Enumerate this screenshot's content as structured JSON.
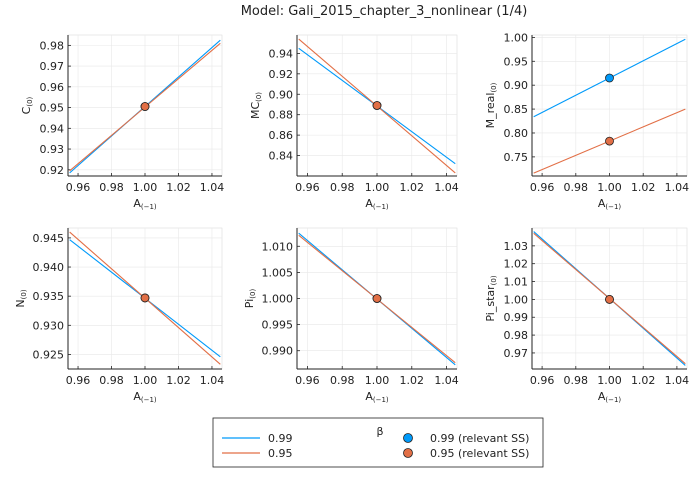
{
  "title": "Model: Gali_2015_chapter_3_nonlinear  (1/4)",
  "colors": {
    "beta_0_99": "#009AFA",
    "beta_0_95": "#E26F46",
    "grid": "#E8E8E8",
    "axis": "#222222"
  },
  "legend": {
    "title": "β",
    "entries": [
      {
        "label": "0.99",
        "kind": "line",
        "color": "#009AFA"
      },
      {
        "label": "0.95",
        "kind": "line",
        "color": "#E26F46"
      },
      {
        "label": "0.99 (relevant SS)",
        "kind": "marker",
        "color": "#009AFA"
      },
      {
        "label": "0.95 (relevant SS)",
        "kind": "marker",
        "color": "#E26F46"
      }
    ]
  },
  "chart_data": [
    {
      "type": "line",
      "ylabel": "C",
      "ylabel_sub": "(0)",
      "xlabel": "A",
      "xlabel_sub": "(−1)",
      "grid": true,
      "xlim": [
        0.954,
        1.046
      ],
      "ylim": [
        0.917,
        0.985
      ],
      "xticks": [
        "0.96",
        "0.98",
        "1.00",
        "1.02",
        "1.04"
      ],
      "yticks": [
        "0.92",
        "0.93",
        "0.94",
        "0.95",
        "0.96",
        "0.97",
        "0.98"
      ],
      "series": [
        {
          "name": "0.99",
          "x": [
            0.955,
            1.045
          ],
          "y": [
            0.9185,
            0.9825
          ]
        },
        {
          "name": "0.95",
          "x": [
            0.955,
            1.045
          ],
          "y": [
            0.9195,
            0.981
          ]
        }
      ],
      "points": [
        {
          "name": "0.99 (relevant SS)",
          "x": 1.0,
          "y": 0.9505
        },
        {
          "name": "0.95 (relevant SS)",
          "x": 1.0,
          "y": 0.9505
        }
      ]
    },
    {
      "type": "line",
      "ylabel": "MC",
      "ylabel_sub": "(0)",
      "xlabel": "A",
      "xlabel_sub": "(−1)",
      "grid": true,
      "xlim": [
        0.954,
        1.046
      ],
      "ylim": [
        0.82,
        0.958
      ],
      "xticks": [
        "0.96",
        "0.98",
        "1.00",
        "1.02",
        "1.04"
      ],
      "yticks": [
        "0.84",
        "0.86",
        "0.88",
        "0.90",
        "0.92",
        "0.94"
      ],
      "series": [
        {
          "name": "0.99",
          "x": [
            0.955,
            1.045
          ],
          "y": [
            0.945,
            0.832
          ]
        },
        {
          "name": "0.95",
          "x": [
            0.955,
            1.045
          ],
          "y": [
            0.954,
            0.823
          ]
        }
      ],
      "points": [
        {
          "name": "0.99 (relevant SS)",
          "x": 1.0,
          "y": 0.889
        },
        {
          "name": "0.95 (relevant SS)",
          "x": 1.0,
          "y": 0.889
        }
      ]
    },
    {
      "type": "line",
      "ylabel": "M_real",
      "ylabel_sub": "(0)",
      "xlabel": "A",
      "xlabel_sub": "(−1)",
      "grid": true,
      "xlim": [
        0.954,
        1.046
      ],
      "ylim": [
        0.71,
        1.005
      ],
      "xticks": [
        "0.96",
        "0.98",
        "1.00",
        "1.02",
        "1.04"
      ],
      "yticks": [
        "0.75",
        "0.80",
        "0.85",
        "0.90",
        "0.95",
        "1.00"
      ],
      "series": [
        {
          "name": "0.99",
          "x": [
            0.955,
            1.045
          ],
          "y": [
            0.834,
            0.996
          ]
        },
        {
          "name": "0.95",
          "x": [
            0.955,
            1.045
          ],
          "y": [
            0.716,
            0.85
          ]
        }
      ],
      "points": [
        {
          "name": "0.99 (relevant SS)",
          "x": 1.0,
          "y": 0.915
        },
        {
          "name": "0.95 (relevant SS)",
          "x": 1.0,
          "y": 0.783
        }
      ]
    },
    {
      "type": "line",
      "ylabel": "N",
      "ylabel_sub": "(0)",
      "xlabel": "A",
      "xlabel_sub": "(−1)",
      "grid": true,
      "xlim": [
        0.954,
        1.046
      ],
      "ylim": [
        0.9225,
        0.9467
      ],
      "xticks": [
        "0.96",
        "0.98",
        "1.00",
        "1.02",
        "1.04"
      ],
      "yticks": [
        "0.925",
        "0.930",
        "0.935",
        "0.940",
        "0.945"
      ],
      "series": [
        {
          "name": "0.99",
          "x": [
            0.955,
            1.045
          ],
          "y": [
            0.9447,
            0.9246
          ]
        },
        {
          "name": "0.95",
          "x": [
            0.955,
            1.045
          ],
          "y": [
            0.946,
            0.9233
          ]
        }
      ],
      "points": [
        {
          "name": "0.99 (relevant SS)",
          "x": 1.0,
          "y": 0.9347
        },
        {
          "name": "0.95 (relevant SS)",
          "x": 1.0,
          "y": 0.9347
        }
      ]
    },
    {
      "type": "line",
      "ylabel": "Pi",
      "ylabel_sub": "(0)",
      "xlabel": "A",
      "xlabel_sub": "(−1)",
      "grid": true,
      "xlim": [
        0.954,
        1.046
      ],
      "ylim": [
        0.9865,
        1.0135
      ],
      "xticks": [
        "0.96",
        "0.98",
        "1.00",
        "1.02",
        "1.04"
      ],
      "yticks": [
        "0.990",
        "0.995",
        "1.000",
        "1.005",
        "1.010"
      ],
      "series": [
        {
          "name": "0.99",
          "x": [
            0.955,
            1.045
          ],
          "y": [
            1.0125,
            0.9873
          ]
        },
        {
          "name": "0.95",
          "x": [
            0.955,
            1.045
          ],
          "y": [
            1.0121,
            0.9877
          ]
        }
      ],
      "points": [
        {
          "name": "0.99 (relevant SS)",
          "x": 1.0,
          "y": 1.0
        },
        {
          "name": "0.95 (relevant SS)",
          "x": 1.0,
          "y": 1.0
        }
      ]
    },
    {
      "type": "line",
      "ylabel": "Pi_star",
      "ylabel_sub": "(0)",
      "xlabel": "A",
      "xlabel_sub": "(−1)",
      "grid": true,
      "xlim": [
        0.954,
        1.046
      ],
      "ylim": [
        0.961,
        1.04
      ],
      "xticks": [
        "0.96",
        "0.98",
        "1.00",
        "1.02",
        "1.04"
      ],
      "yticks": [
        "0.97",
        "0.98",
        "0.99",
        "1.00",
        "1.01",
        "1.02",
        "1.03"
      ],
      "series": [
        {
          "name": "0.99",
          "x": [
            0.955,
            1.045
          ],
          "y": [
            1.038,
            0.963
          ]
        },
        {
          "name": "0.95",
          "x": [
            0.955,
            1.045
          ],
          "y": [
            1.037,
            0.964
          ]
        }
      ],
      "points": [
        {
          "name": "0.99 (relevant SS)",
          "x": 1.0,
          "y": 1.0
        },
        {
          "name": "0.95 (relevant SS)",
          "x": 1.0,
          "y": 1.0
        }
      ]
    }
  ]
}
